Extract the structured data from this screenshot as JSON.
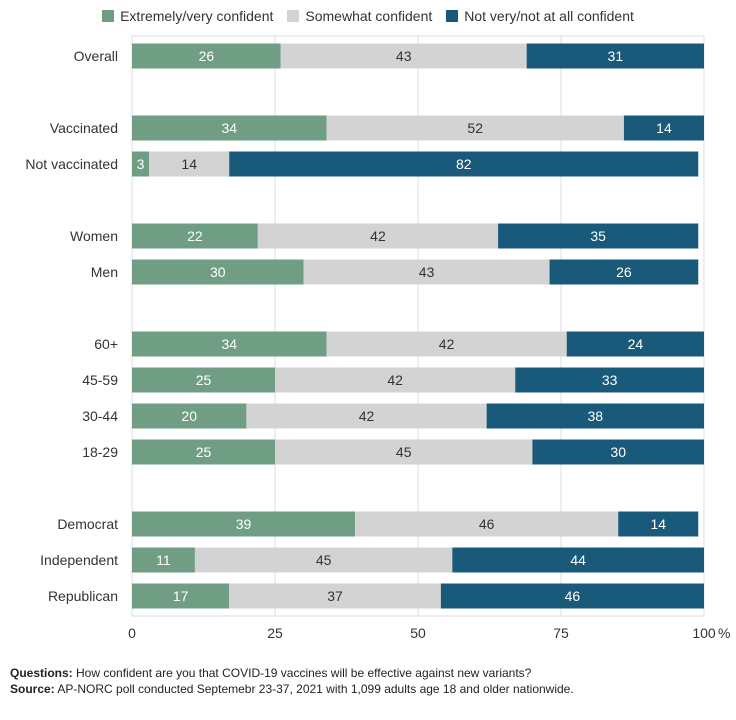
{
  "legend": [
    {
      "label": "Extremely/very confident",
      "color": "#6f9e85"
    },
    {
      "label": "Somewhat confident",
      "color": "#d3d3d3"
    },
    {
      "label": "Not very/not at all confident",
      "color": "#195a7a"
    }
  ],
  "footnote": {
    "questions_label": "Questions:",
    "questions_text": "How confident are you that COVID-19 vaccines will be effective against new variants?",
    "source_label": "Source:",
    "source_text": "AP-NORC poll conducted Septemebr 23-37, 2021 with 1,099 adults age 18 and older nationwide."
  },
  "chart_data": {
    "type": "bar",
    "orientation": "horizontal",
    "stacked": true,
    "categories": [
      "Overall",
      "Vaccinated",
      "Not vaccinated",
      "Women",
      "Men",
      "60+",
      "45-59",
      "30-44",
      "18-29",
      "Democrat",
      "Independent",
      "Republican"
    ],
    "groups": [
      [
        "Overall"
      ],
      [
        "Vaccinated",
        "Not vaccinated"
      ],
      [
        "Women",
        "Men"
      ],
      [
        "60+",
        "45-59",
        "30-44",
        "18-29"
      ],
      [
        "Democrat",
        "Independent",
        "Republican"
      ]
    ],
    "series": [
      {
        "name": "Extremely/very confident",
        "color": "#6f9e85",
        "label_color": "#ffffff",
        "values": [
          26,
          34,
          3,
          22,
          30,
          34,
          25,
          20,
          25,
          39,
          11,
          17
        ]
      },
      {
        "name": "Somewhat confident",
        "color": "#d3d3d3",
        "label_color": "#333333",
        "values": [
          43,
          52,
          14,
          42,
          43,
          42,
          42,
          42,
          45,
          46,
          45,
          37
        ]
      },
      {
        "name": "Not very/not at all confident",
        "color": "#195a7a",
        "label_color": "#ffffff",
        "values": [
          31,
          14,
          82,
          35,
          26,
          24,
          33,
          38,
          30,
          14,
          44,
          46
        ]
      }
    ],
    "xlim": [
      0,
      100
    ],
    "xticks": [
      0,
      25,
      50,
      75,
      100
    ],
    "xtick_labels": [
      "0",
      "25",
      "50",
      "75",
      "100"
    ],
    "x_unit": "%",
    "grid": true,
    "legend_position": "top"
  }
}
